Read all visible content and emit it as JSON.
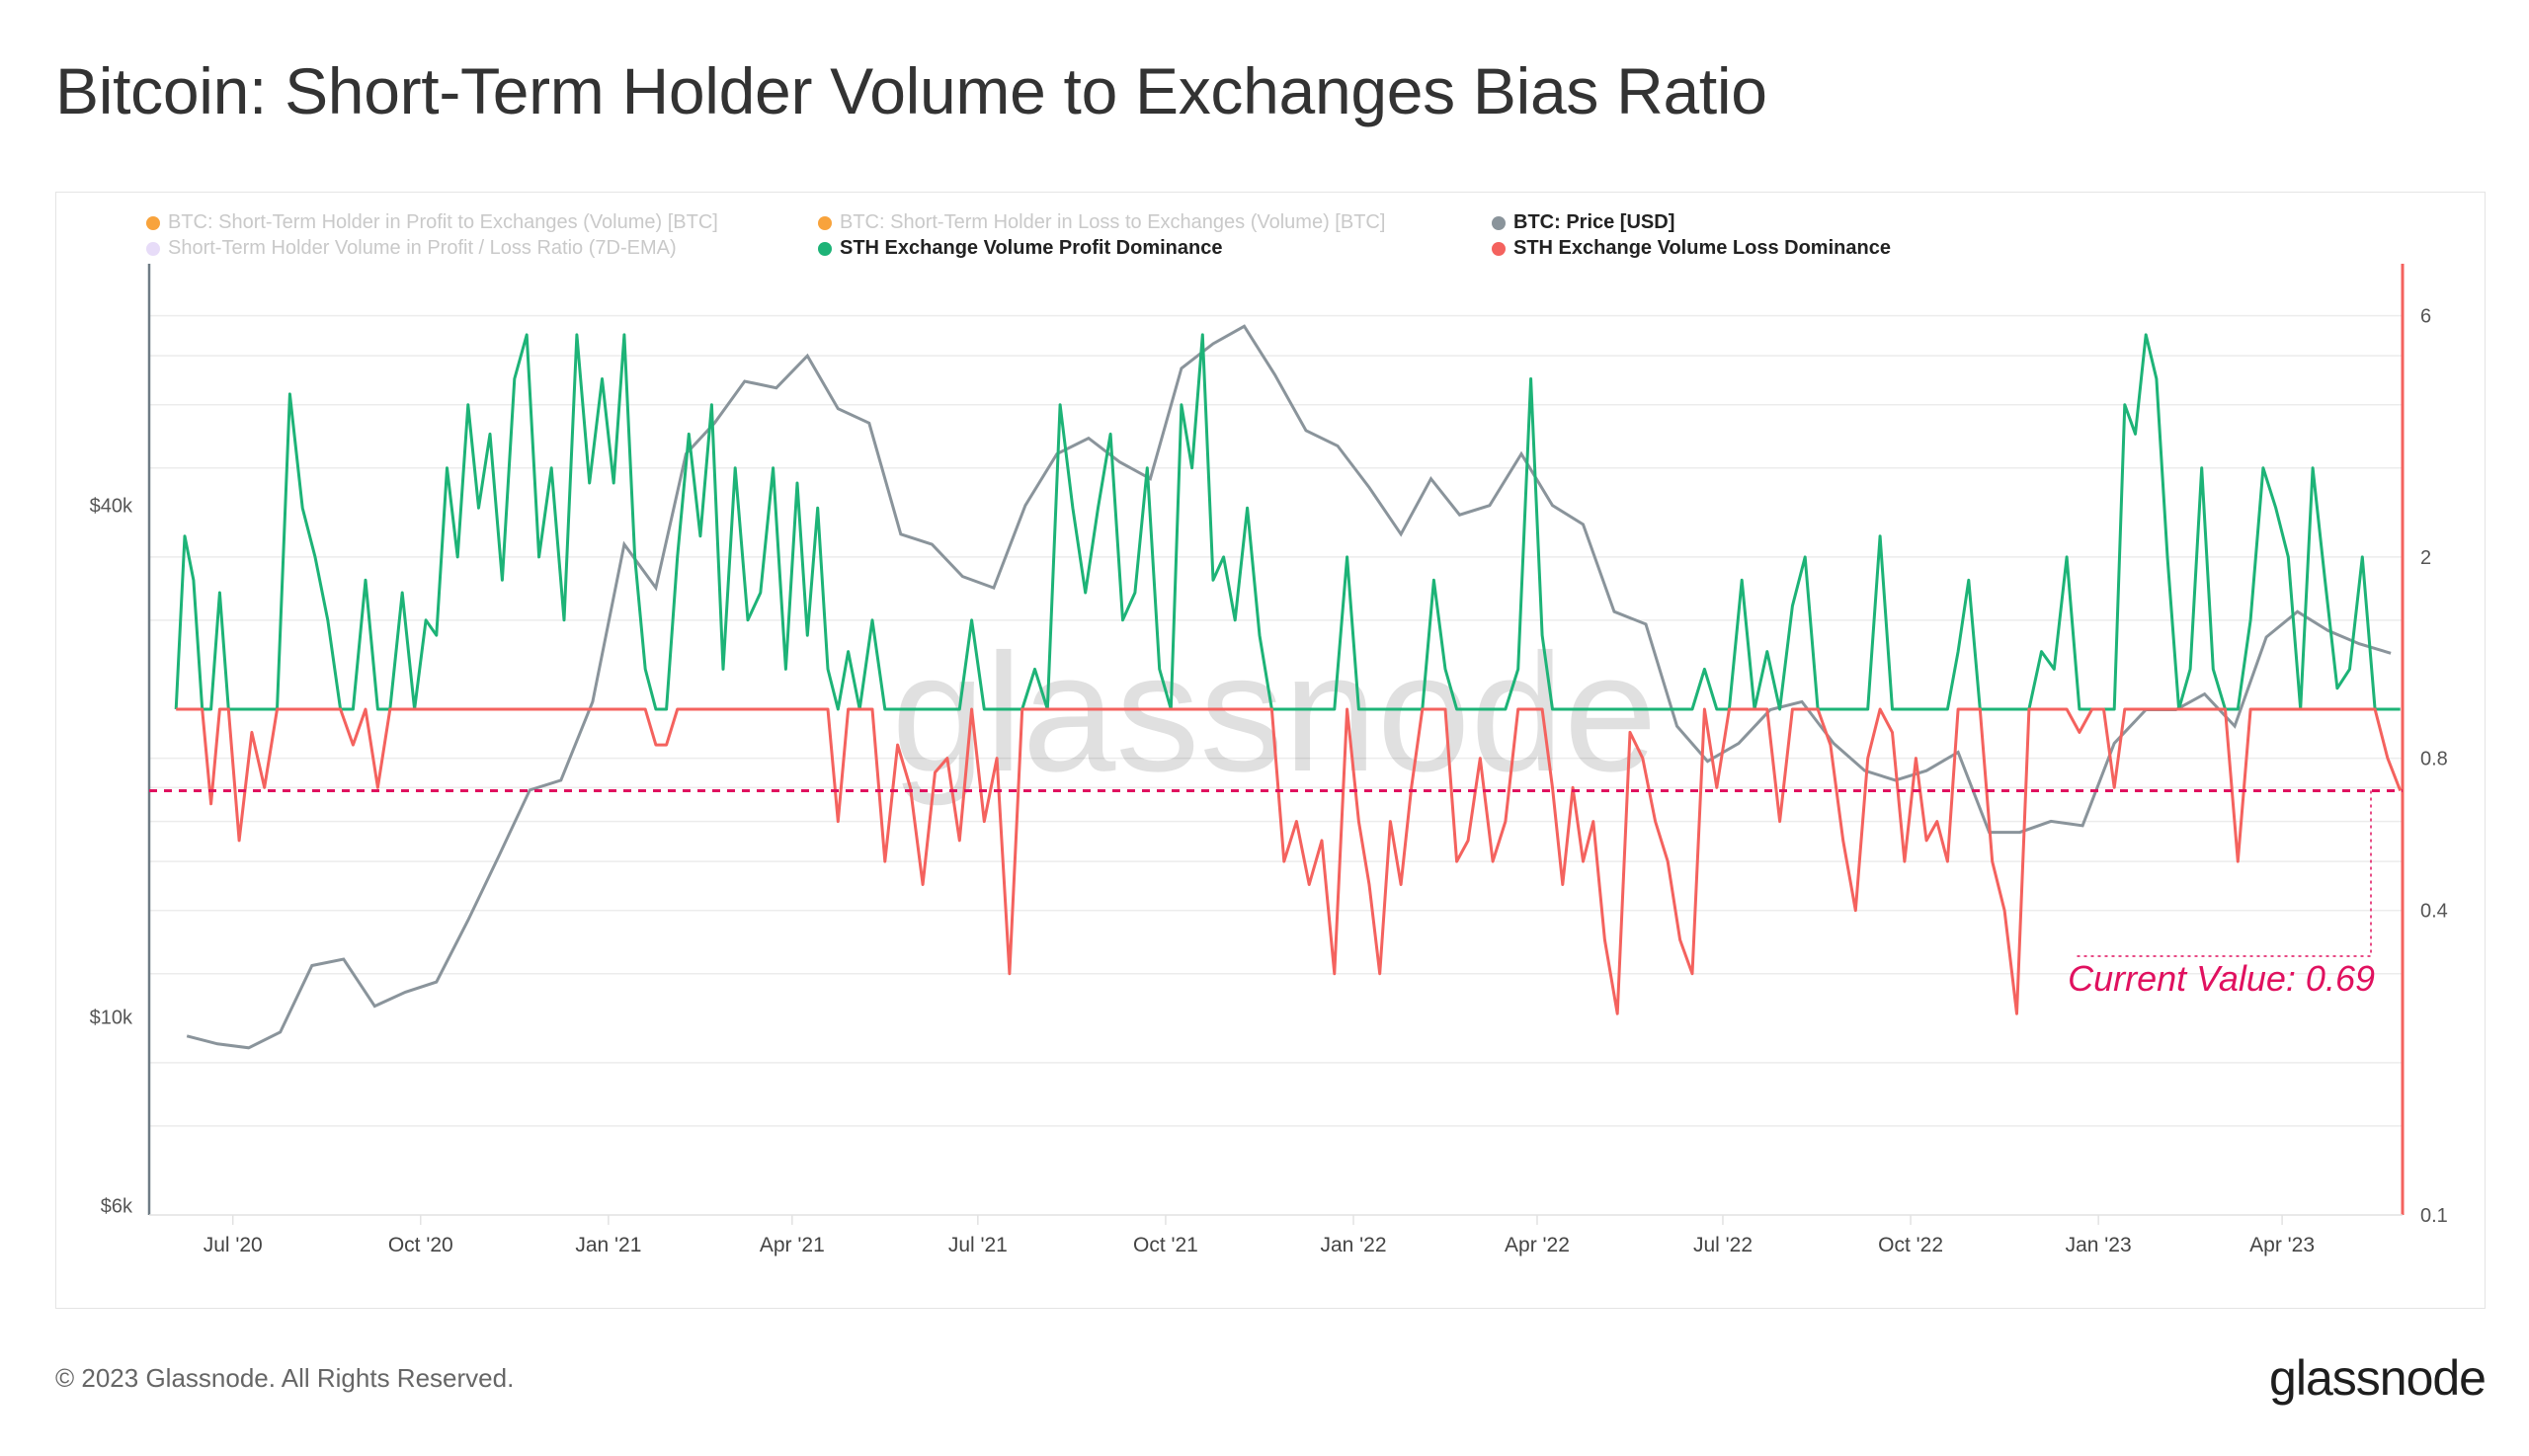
{
  "title": "Bitcoin: Short-Term Holder Volume to Exchanges Bias Ratio",
  "footer": "© 2023 Glassnode. All Rights Reserved.",
  "logo": "glassnode",
  "watermark": "glassnode",
  "legend": [
    {
      "label": "BTC: Short-Term Holder in Profit to Exchanges (Volume) [BTC]",
      "color": "#f7931a",
      "active": false
    },
    {
      "label": "BTC: Short-Term Holder in Loss to Exchanges (Volume) [BTC]",
      "color": "#f7931a",
      "active": false
    },
    {
      "label": "BTC: Price [USD]",
      "color": "#8a949b",
      "active": true
    },
    {
      "label": "Short-Term Holder Volume in Profit / Loss Ratio (7D-EMA)",
      "color": "#e3d6f7",
      "active": false
    },
    {
      "label": "STH Exchange Volume Profit Dominance",
      "color": "#1db377",
      "active": true
    },
    {
      "label": "STH Exchange Volume Loss Dominance",
      "color": "#f4625e",
      "active": true
    }
  ],
  "chart_data": {
    "type": "line",
    "x_range": [
      "2020-05-21",
      "2023-05-30"
    ],
    "x_ticks": [
      {
        "date": "2020-07-01",
        "label": "Jul '20"
      },
      {
        "date": "2020-10-01",
        "label": "Oct '20"
      },
      {
        "date": "2021-01-01",
        "label": "Jan '21"
      },
      {
        "date": "2021-04-01",
        "label": "Apr '21"
      },
      {
        "date": "2021-07-01",
        "label": "Jul '21"
      },
      {
        "date": "2021-10-01",
        "label": "Oct '21"
      },
      {
        "date": "2022-01-01",
        "label": "Jan '22"
      },
      {
        "date": "2022-04-01",
        "label": "Apr '22"
      },
      {
        "date": "2022-07-01",
        "label": "Jul '22"
      },
      {
        "date": "2022-10-01",
        "label": "Oct '22"
      },
      {
        "date": "2023-01-01",
        "label": "Jan '23"
      },
      {
        "date": "2023-04-01",
        "label": "Apr '23"
      }
    ],
    "left_axis": {
      "scale": "log",
      "range": [
        5850,
        77000
      ],
      "ticks": [
        {
          "value": 40000,
          "label": "$40k"
        },
        {
          "value": 10000,
          "label": "$10k"
        },
        {
          "value": 6000,
          "label": "$6k"
        }
      ],
      "color": "#6f7c85"
    },
    "right_axis": {
      "scale": "log",
      "range": [
        0.1,
        7.6
      ],
      "ticks": [
        {
          "value": 6,
          "label": "6"
        },
        {
          "value": 2,
          "label": "2"
        },
        {
          "value": 0.8,
          "label": "0.8"
        },
        {
          "value": 0.4,
          "label": "0.4"
        },
        {
          "value": 0.1,
          "label": "0.1"
        }
      ],
      "color": "#f4625e"
    },
    "grid": true,
    "legend_position": "top-left",
    "baseline": 1.0,
    "current_value": {
      "value": 0.69,
      "label": "Current Value: 0.69",
      "color": "#e0115f"
    },
    "price_series": {
      "name": "BTC: Price [USD]",
      "color": "#8a949b",
      "axis": "left",
      "monthly": [
        {
          "month": "2020-06",
          "values": [
            9500,
            9300
          ]
        },
        {
          "month": "2020-07",
          "values": [
            9200,
            9600
          ]
        },
        {
          "month": "2020-08",
          "values": [
            11500,
            11700
          ]
        },
        {
          "month": "2020-09",
          "values": [
            10300,
            10700
          ]
        },
        {
          "month": "2020-10",
          "values": [
            11000,
            13000
          ]
        },
        {
          "month": "2020-11",
          "values": [
            15500,
            18500
          ]
        },
        {
          "month": "2020-12",
          "values": [
            19000,
            23500
          ]
        },
        {
          "month": "2021-01",
          "values": [
            36000,
            32000
          ]
        },
        {
          "month": "2021-02",
          "values": [
            46000,
            50000
          ]
        },
        {
          "month": "2021-03",
          "values": [
            56000,
            55000
          ]
        },
        {
          "month": "2021-04",
          "values": [
            60000,
            52000
          ]
        },
        {
          "month": "2021-05",
          "values": [
            50000,
            37000
          ]
        },
        {
          "month": "2021-06",
          "values": [
            36000,
            33000
          ]
        },
        {
          "month": "2021-07",
          "values": [
            32000,
            40000
          ]
        },
        {
          "month": "2021-08",
          "values": [
            46000,
            48000
          ]
        },
        {
          "month": "2021-09",
          "values": [
            45000,
            43000
          ]
        },
        {
          "month": "2021-10",
          "values": [
            58000,
            62000
          ]
        },
        {
          "month": "2021-11",
          "values": [
            65000,
            57000
          ]
        },
        {
          "month": "2021-12",
          "values": [
            49000,
            47000
          ]
        },
        {
          "month": "2022-01",
          "values": [
            42000,
            37000
          ]
        },
        {
          "month": "2022-02",
          "values": [
            43000,
            39000
          ]
        },
        {
          "month": "2022-03",
          "values": [
            40000,
            46000
          ]
        },
        {
          "month": "2022-04",
          "values": [
            40000,
            38000
          ]
        },
        {
          "month": "2022-05",
          "values": [
            30000,
            29000
          ]
        },
        {
          "month": "2022-06",
          "values": [
            22000,
            20000
          ]
        },
        {
          "month": "2022-07",
          "values": [
            21000,
            23000
          ]
        },
        {
          "month": "2022-08",
          "values": [
            23500,
            21000
          ]
        },
        {
          "month": "2022-09",
          "values": [
            19500,
            19000
          ]
        },
        {
          "month": "2022-10",
          "values": [
            19500,
            20500
          ]
        },
        {
          "month": "2022-11",
          "values": [
            16500,
            16500
          ]
        },
        {
          "month": "2022-12",
          "values": [
            17000,
            16800
          ]
        },
        {
          "month": "2023-01",
          "values": [
            21000,
            23000
          ]
        },
        {
          "month": "2023-02",
          "values": [
            23000,
            24000
          ]
        },
        {
          "month": "2023-03",
          "values": [
            22000,
            28000
          ]
        },
        {
          "month": "2023-04",
          "values": [
            30000,
            28500
          ]
        },
        {
          "month": "2023-05",
          "values": [
            27500,
            26800
          ]
        }
      ]
    },
    "ratio_series": {
      "profit_name": "STH Exchange Volume Profit Dominance",
      "profit_color": "#1db377",
      "loss_name": "STH Exchange Volume Loss Dominance",
      "loss_color": "#f4625e",
      "axis": "right",
      "monthly": [
        {
          "month": "2020-06",
          "values": [
            1.0,
            2.2,
            1.8,
            1.0,
            0.65,
            1.7,
            1.0
          ]
        },
        {
          "month": "2020-07",
          "values": [
            0.55,
            0.9,
            0.7,
            1.0,
            4.2
          ]
        },
        {
          "month": "2020-08",
          "values": [
            2.5,
            2.0,
            1.5,
            1.0,
            0.85
          ]
        },
        {
          "month": "2020-09",
          "values": [
            1.8,
            0.7,
            1.0,
            1.7,
            1.0
          ]
        },
        {
          "month": "2020-10",
          "values": [
            1.5,
            1.4,
            3.0,
            2.0,
            4.0,
            2.5
          ]
        },
        {
          "month": "2020-11",
          "values": [
            3.5,
            1.8,
            4.5,
            5.5,
            2.0
          ]
        },
        {
          "month": "2020-12",
          "values": [
            3.0,
            1.5,
            5.5,
            2.8,
            4.5
          ]
        },
        {
          "month": "2021-01",
          "values": [
            2.8,
            5.5,
            2.0,
            1.2,
            0.85,
            0.85
          ]
        },
        {
          "month": "2021-02",
          "values": [
            2.0,
            3.5,
            2.2,
            4.0,
            1.2
          ]
        },
        {
          "month": "2021-03",
          "values": [
            3.0,
            1.5,
            1.7,
            3.0,
            1.2
          ]
        },
        {
          "month": "2021-04",
          "values": [
            2.8,
            1.4,
            2.5,
            1.2,
            0.6,
            1.3
          ]
        },
        {
          "month": "2021-05",
          "values": [
            1.0,
            1.5,
            0.5,
            0.85,
            0.7
          ]
        },
        {
          "month": "2021-06",
          "values": [
            0.45,
            0.75,
            0.8,
            0.55,
            1.5
          ]
        },
        {
          "month": "2021-07",
          "values": [
            0.6,
            0.8,
            0.3,
            1.0,
            1.2
          ]
        },
        {
          "month": "2021-08",
          "values": [
            1.0,
            4.0,
            2.5,
            1.7,
            2.5
          ]
        },
        {
          "month": "2021-09",
          "values": [
            3.5,
            1.5,
            1.7,
            3.0,
            1.2
          ]
        },
        {
          "month": "2021-10",
          "values": [
            1.0,
            4.0,
            3.0,
            5.5,
            1.8,
            2.0
          ]
        },
        {
          "month": "2021-11",
          "values": [
            1.5,
            2.5,
            1.4,
            1.0,
            0.5
          ]
        },
        {
          "month": "2021-12",
          "values": [
            0.6,
            0.45,
            0.55,
            0.3,
            2.0
          ]
        },
        {
          "month": "2022-01",
          "values": [
            0.6,
            0.45,
            0.3,
            0.6,
            0.45,
            0.7
          ]
        },
        {
          "month": "2022-02",
          "values": [
            1.0,
            1.8,
            1.2,
            0.5,
            0.55
          ]
        },
        {
          "month": "2022-03",
          "values": [
            0.8,
            0.5,
            0.6,
            1.2,
            4.5
          ]
        },
        {
          "month": "2022-04",
          "values": [
            1.4,
            0.7,
            0.45,
            0.7,
            0.5,
            0.6
          ]
        },
        {
          "month": "2022-05",
          "values": [
            0.35,
            0.25,
            0.9,
            0.8,
            0.6
          ]
        },
        {
          "month": "2022-06",
          "values": [
            0.5,
            0.35,
            0.3,
            1.2,
            0.7
          ]
        },
        {
          "month": "2022-07",
          "values": [
            1.0,
            1.8,
            1.0,
            1.3,
            0.6
          ]
        },
        {
          "month": "2022-08",
          "values": [
            1.6,
            2.0,
            1.0,
            0.85,
            0.55
          ]
        },
        {
          "month": "2022-09",
          "values": [
            0.4,
            0.8,
            2.2,
            0.9,
            0.5
          ]
        },
        {
          "month": "2022-10",
          "values": [
            0.8,
            0.55,
            0.6,
            0.5,
            1.3,
            1.8
          ]
        },
        {
          "month": "2022-11",
          "values": [
            1.0,
            0.5,
            0.4,
            0.25,
            1.0
          ]
        },
        {
          "month": "2022-12",
          "values": [
            1.3,
            1.2,
            2.0,
            0.9,
            1.0
          ]
        },
        {
          "month": "2023-01",
          "values": [
            1.0,
            0.7,
            4.0,
            3.5,
            5.5,
            4.5
          ]
        },
        {
          "month": "2023-02",
          "values": [
            2.0,
            1.0,
            1.2,
            3.0,
            1.2
          ]
        },
        {
          "month": "2023-03",
          "values": [
            1.0,
            0.5,
            1.5,
            3.0,
            2.5
          ]
        },
        {
          "month": "2023-04",
          "values": [
            2.0,
            1.0,
            3.0,
            1.8,
            1.1
          ]
        },
        {
          "month": "2023-05",
          "values": [
            1.2,
            2.0,
            1.0,
            0.8,
            0.69
          ]
        }
      ]
    }
  }
}
